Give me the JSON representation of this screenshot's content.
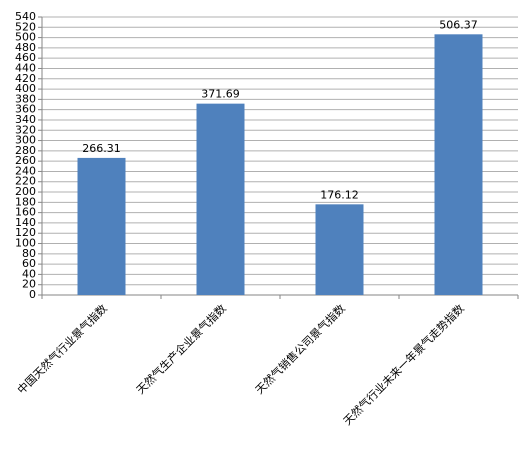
{
  "chart_data": {
    "type": "bar",
    "categories": [
      "中国天然气行业景气指数",
      "天然气生产企业景气指数",
      "天然气销售公司景气指数",
      "天然气行业未来一年景气走势指数"
    ],
    "values": [
      266.31,
      371.69,
      176.12,
      506.37
    ],
    "color": "#4f81bd",
    "ylim": [
      0,
      540
    ],
    "yticks": [
      0,
      20,
      40,
      60,
      80,
      100,
      120,
      140,
      160,
      180,
      200,
      220,
      240,
      260,
      280,
      300,
      320,
      340,
      360,
      380,
      400,
      420,
      440,
      460,
      480,
      500,
      520,
      540
    ],
    "grid": true
  }
}
